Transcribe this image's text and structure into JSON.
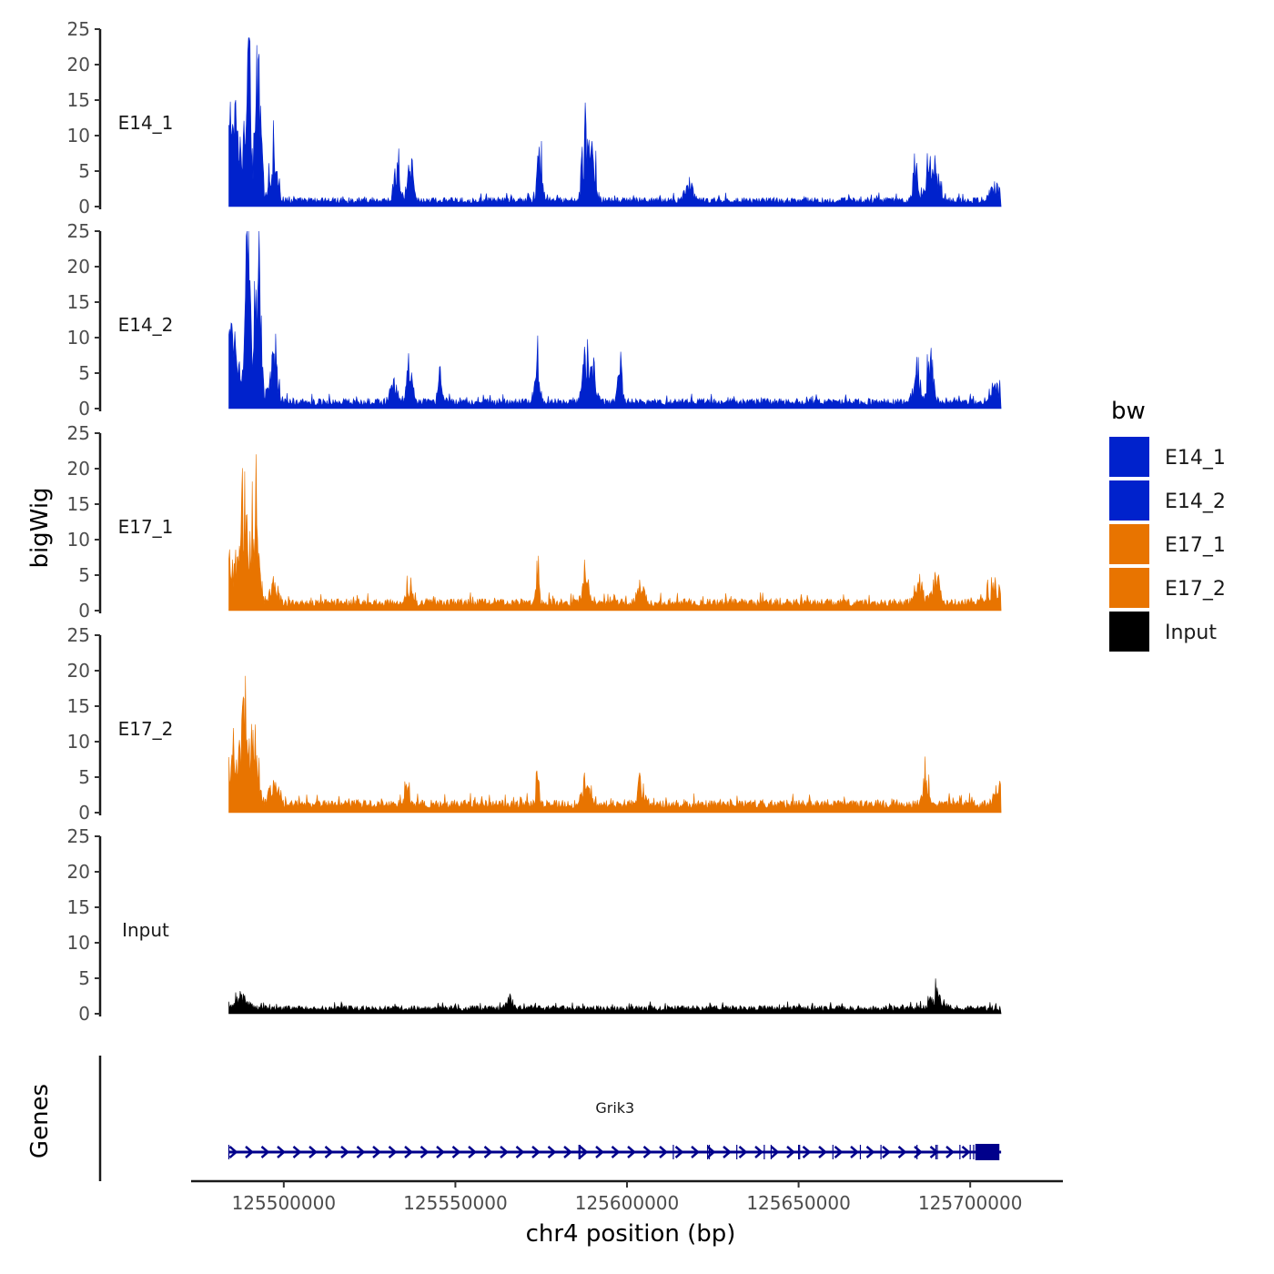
{
  "chart_data": {
    "type": "area",
    "title": "",
    "ylabel": "bigWig",
    "xlabel": "chr4 position (bp)",
    "genes_label": "Genes",
    "xlim": [
      125473000,
      125727000
    ],
    "data_range": [
      125484000,
      125709000
    ],
    "x_ticks": [
      125500000,
      125550000,
      125600000,
      125650000,
      125700000
    ],
    "x_tick_labels": [
      "125500000",
      "125550000",
      "125600000",
      "125650000",
      "125700000"
    ],
    "ylim": [
      0,
      25
    ],
    "y_ticks": [
      0,
      5,
      10,
      15,
      20,
      25
    ],
    "y_tick_labels": [
      "0",
      "5",
      "10",
      "15",
      "20",
      "25"
    ],
    "legend": {
      "title": "bw",
      "entries": [
        {
          "label": "E14_1",
          "color": "#0022CC"
        },
        {
          "label": "E14_2",
          "color": "#0022CC"
        },
        {
          "label": "E17_1",
          "color": "#E87400"
        },
        {
          "label": "E17_2",
          "color": "#E87400"
        },
        {
          "label": "Input",
          "color": "#000000"
        }
      ]
    },
    "tracks": [
      {
        "name": "E14_1",
        "color": "#0022CC",
        "noise": 0.6,
        "baseline": 1.0,
        "peaks": [
          [
            125485000,
            12,
            3000
          ],
          [
            125489500,
            23.5,
            1000
          ],
          [
            125492500,
            17,
            1200
          ],
          [
            125497000,
            6,
            1500
          ],
          [
            125533000,
            4.5,
            1200
          ],
          [
            125537000,
            6,
            1000
          ],
          [
            125574500,
            6,
            900
          ],
          [
            125588000,
            8,
            1200
          ],
          [
            125590000,
            6,
            1200
          ],
          [
            125618000,
            2.5,
            1500
          ],
          [
            125684000,
            5.5,
            1000
          ],
          [
            125688000,
            6,
            1200
          ],
          [
            125690000,
            4,
            1500
          ],
          [
            125707000,
            2,
            2000
          ]
        ]
      },
      {
        "name": "E14_2",
        "color": "#0022CC",
        "noise": 0.6,
        "baseline": 1.1,
        "peaks": [
          [
            125485000,
            10,
            3000
          ],
          [
            125489500,
            22,
            1000
          ],
          [
            125492500,
            17.5,
            1200
          ],
          [
            125497000,
            6,
            1500
          ],
          [
            125532000,
            3,
            1200
          ],
          [
            125536500,
            5,
            1000
          ],
          [
            125545500,
            5,
            600
          ],
          [
            125574000,
            5,
            1000
          ],
          [
            125588000,
            6.5,
            1200
          ],
          [
            125590000,
            5,
            1200
          ],
          [
            125598000,
            5.5,
            800
          ],
          [
            125684500,
            5.5,
            1000
          ],
          [
            125688500,
            6,
            1200
          ],
          [
            125707000,
            2,
            2000
          ]
        ]
      },
      {
        "name": "E17_1",
        "color": "#E87400",
        "noise": 0.7,
        "baseline": 1.3,
        "peaks": [
          [
            125485000,
            6,
            3000
          ],
          [
            125488500,
            13.5,
            1200
          ],
          [
            125491500,
            11.5,
            1500
          ],
          [
            125497000,
            3.5,
            1500
          ],
          [
            125537000,
            3,
            1200
          ],
          [
            125574000,
            6.5,
            500
          ],
          [
            125588000,
            5,
            1200
          ],
          [
            125604000,
            3,
            1200
          ],
          [
            125685000,
            3,
            1500
          ],
          [
            125690000,
            3,
            1500
          ],
          [
            125707000,
            2.5,
            2000
          ]
        ]
      },
      {
        "name": "E17_2",
        "color": "#E87400",
        "noise": 0.7,
        "baseline": 1.4,
        "peaks": [
          [
            125485000,
            6,
            3000
          ],
          [
            125488500,
            11.5,
            1200
          ],
          [
            125491500,
            11,
            1500
          ],
          [
            125497000,
            3.5,
            1500
          ],
          [
            125536000,
            4,
            800
          ],
          [
            125574000,
            5.5,
            500
          ],
          [
            125588000,
            3.5,
            1200
          ],
          [
            125604000,
            3,
            1200
          ],
          [
            125687000,
            4.5,
            900
          ],
          [
            125708000,
            3,
            1200
          ]
        ]
      },
      {
        "name": "Input",
        "color": "#000000",
        "noise": 0.55,
        "baseline": 0.9,
        "peaks": [
          [
            125488000,
            2,
            2000
          ],
          [
            125566000,
            2,
            800
          ],
          [
            125690000,
            1.8,
            2500
          ]
        ]
      }
    ],
    "genes": [
      {
        "name": "Grik3",
        "strand": "+",
        "start": 125484000,
        "end": 125709000,
        "color": "#00008B",
        "exons": [
          125484000,
          125586000,
          125586300,
          125613500,
          125623500,
          125624000,
          125632000,
          125640000,
          125642000,
          125650000,
          125650300,
          125660000,
          125668000,
          125674000,
          125684500,
          125690000,
          125690400,
          125697000,
          125700000,
          125701000
        ],
        "last_exon": [
          125701500,
          125708500
        ]
      }
    ]
  }
}
